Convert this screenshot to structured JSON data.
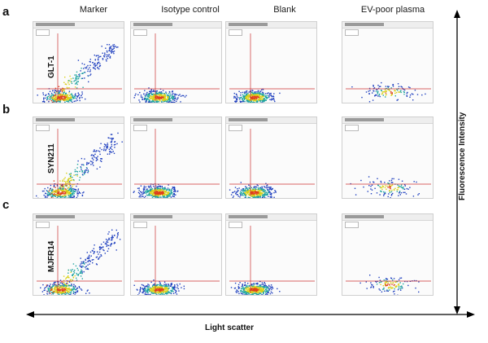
{
  "column_titles": [
    "Marker",
    "Isotype control",
    "Blank",
    "EV-poor plasma"
  ],
  "rows": [
    {
      "letter": "a",
      "marker": "GLT-1"
    },
    {
      "letter": "b",
      "marker": "SYN211"
    },
    {
      "letter": "c",
      "marker": "MJFR14"
    }
  ],
  "y_axis_title": "Fluorescence Intensity",
  "x_axis_title": "Light scatter",
  "colors": {
    "gate_line": "#cc3333",
    "panel_frame": "#cfcfcf",
    "density_low": "#1f3fbf",
    "density_mid": "#1fa5a0",
    "density_high": "#d9d21a",
    "density_peak": "#e0401a"
  }
}
